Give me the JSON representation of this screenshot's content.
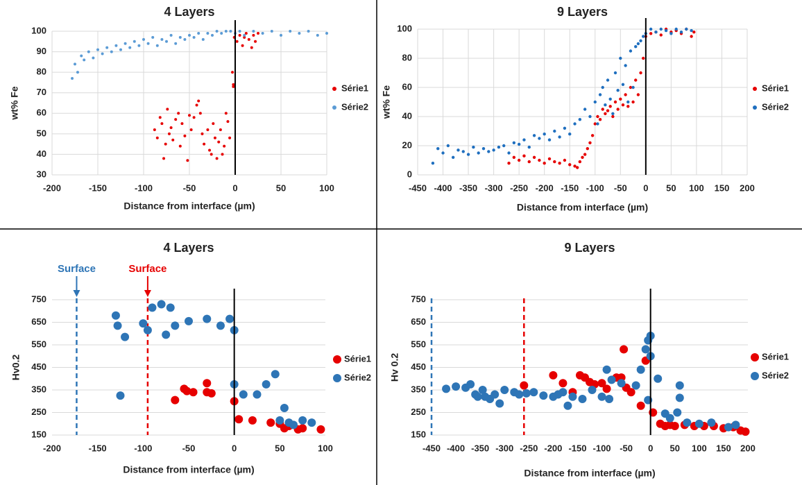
{
  "chart_data": [
    {
      "type": "scatter",
      "title": "4 Layers",
      "x_label": "Distance from interface (µm)",
      "y_label": "wt% Fe",
      "xlim": [
        -200,
        100
      ],
      "ylim": [
        30,
        100
      ],
      "xticks": [
        -200,
        -150,
        -100,
        -50,
        0,
        50,
        100
      ],
      "yticks": [
        30,
        40,
        50,
        60,
        70,
        80,
        90,
        100
      ],
      "grid": "both",
      "legend": "right",
      "series": [
        {
          "name": "Série1",
          "color": "#e60000",
          "x": [
            -88,
            -85,
            -82,
            -80,
            -78,
            -76,
            -74,
            -72,
            -70,
            -68,
            -65,
            -62,
            -60,
            -58,
            -55,
            -52,
            -50,
            -48,
            -45,
            -42,
            -40,
            -38,
            -36,
            -34,
            -30,
            -28,
            -26,
            -24,
            -22,
            -20,
            -18,
            -16,
            -14,
            -12,
            -10,
            -8,
            -6,
            -3,
            -2,
            -2,
            -1,
            2,
            5,
            8,
            10,
            12,
            15,
            18,
            20,
            22,
            25
          ],
          "values": [
            52,
            48,
            58,
            55,
            38,
            45,
            62,
            50,
            53,
            47,
            57,
            60,
            44,
            55,
            49,
            37,
            59,
            52,
            58,
            64,
            66,
            60,
            50,
            45,
            52,
            42,
            40,
            55,
            48,
            38,
            46,
            52,
            40,
            44,
            60,
            56,
            48,
            80,
            74,
            73,
            97,
            95,
            98,
            93,
            97,
            99,
            96,
            92,
            98,
            95,
            99
          ]
        },
        {
          "name": "Série2",
          "color": "#5b9bd5",
          "x": [
            -178,
            -175,
            -172,
            -168,
            -165,
            -160,
            -155,
            -150,
            -145,
            -140,
            -135,
            -130,
            -125,
            -120,
            -115,
            -110,
            -105,
            -100,
            -95,
            -90,
            -85,
            -80,
            -75,
            -70,
            -65,
            -60,
            -55,
            -50,
            -45,
            -40,
            -35,
            -30,
            -25,
            -20,
            -15,
            -10,
            -5,
            0,
            5,
            10,
            20,
            30,
            40,
            50,
            60,
            70,
            80,
            90,
            100
          ],
          "values": [
            77,
            84,
            80,
            88,
            86,
            90,
            87,
            91,
            89,
            92,
            90,
            93,
            91,
            94,
            92,
            95,
            93,
            96,
            94,
            97,
            93,
            96,
            95,
            98,
            94,
            97,
            96,
            98,
            97,
            99,
            96,
            99,
            98,
            100,
            99,
            100,
            100,
            99,
            100,
            98,
            100,
            99,
            100,
            98,
            100,
            99,
            100,
            98,
            99
          ]
        }
      ]
    },
    {
      "type": "scatter",
      "title": "9 Layers",
      "x_label": "Distance from interface (µm)",
      "y_label": "wt% Fe",
      "xlim": [
        -450,
        200
      ],
      "ylim": [
        0,
        100
      ],
      "xticks": [
        -450,
        -400,
        -350,
        -300,
        -250,
        -200,
        -150,
        -100,
        -50,
        0,
        50,
        100,
        150,
        200
      ],
      "yticks": [
        0,
        20,
        40,
        60,
        80,
        100
      ],
      "grid": "both",
      "legend": "right",
      "series": [
        {
          "name": "Série1",
          "color": "#e60000",
          "x": [
            -270,
            -260,
            -250,
            -240,
            -230,
            -220,
            -210,
            -200,
            -190,
            -180,
            -170,
            -160,
            -150,
            -140,
            -135,
            -130,
            -125,
            -120,
            -115,
            -110,
            -105,
            -100,
            -95,
            -90,
            -85,
            -80,
            -75,
            -70,
            -65,
            -60,
            -55,
            -50,
            -45,
            -40,
            -35,
            -30,
            -25,
            -20,
            -15,
            -10,
            -5,
            0,
            10,
            20,
            30,
            40,
            50,
            60,
            70,
            80,
            90,
            95
          ],
          "values": [
            8,
            12,
            10,
            13,
            9,
            12,
            10,
            8,
            11,
            9,
            8,
            10,
            7,
            6,
            5,
            9,
            12,
            14,
            18,
            22,
            27,
            35,
            40,
            38,
            45,
            42,
            44,
            47,
            40,
            50,
            45,
            52,
            48,
            55,
            47,
            60,
            50,
            65,
            55,
            70,
            80,
            95,
            97,
            98,
            96,
            100,
            98,
            99,
            97,
            100,
            95,
            98
          ]
        },
        {
          "name": "Série2",
          "color": "#1f6fbf",
          "x": [
            -420,
            -410,
            -400,
            -390,
            -380,
            -370,
            -360,
            -350,
            -340,
            -330,
            -320,
            -310,
            -300,
            -290,
            -280,
            -270,
            -260,
            -250,
            -240,
            -230,
            -220,
            -210,
            -200,
            -190,
            -180,
            -170,
            -160,
            -150,
            -140,
            -130,
            -120,
            -110,
            -100,
            -95,
            -90,
            -85,
            -80,
            -75,
            -70,
            -65,
            -60,
            -55,
            -50,
            -45,
            -40,
            -35,
            -30,
            -25,
            -20,
            -15,
            -10,
            -5,
            0,
            10,
            20,
            30,
            40,
            50,
            60,
            70,
            80,
            90
          ],
          "values": [
            8,
            18,
            15,
            20,
            12,
            17,
            16,
            14,
            19,
            15,
            18,
            16,
            17,
            19,
            20,
            15,
            22,
            21,
            24,
            19,
            27,
            25,
            28,
            24,
            30,
            26,
            32,
            28,
            35,
            38,
            45,
            40,
            50,
            35,
            55,
            60,
            48,
            65,
            52,
            42,
            70,
            58,
            80,
            62,
            75,
            50,
            85,
            60,
            88,
            90,
            92,
            95,
            97,
            100,
            98,
            100,
            99,
            97,
            100,
            98,
            100,
            99
          ]
        }
      ]
    },
    {
      "type": "scatter",
      "title": "4 Layers",
      "x_label": "Distance from interface (µm)",
      "y_label": "Hv0.2",
      "xlim": [
        -200,
        100
      ],
      "ylim": [
        150,
        750
      ],
      "xticks": [
        -200,
        -150,
        -100,
        -50,
        0,
        50,
        100
      ],
      "yticks": [
        150,
        250,
        350,
        450,
        550,
        650,
        750
      ],
      "grid": "y",
      "legend": "right",
      "annotations": [
        {
          "text": "Surface",
          "x": -173,
          "color": "#2e75b6"
        },
        {
          "text": "Surface",
          "x": -95,
          "color": "#e60000"
        }
      ],
      "series": [
        {
          "name": "Série1",
          "color": "#e60000",
          "x": [
            -65,
            -55,
            -52,
            -45,
            -30,
            -30,
            -25,
            0,
            5,
            20,
            40,
            50,
            55,
            60,
            70,
            75,
            95
          ],
          "values": [
            305,
            355,
            345,
            340,
            380,
            340,
            335,
            300,
            220,
            215,
            205,
            200,
            180,
            190,
            175,
            180,
            175
          ]
        },
        {
          "name": "Série2",
          "color": "#2e75b6",
          "x": [
            -130,
            -128,
            -120,
            -125,
            -100,
            -95,
            -90,
            -80,
            -75,
            -70,
            -65,
            -50,
            -30,
            -15,
            -5,
            0,
            0,
            10,
            25,
            35,
            45,
            50,
            55,
            60,
            65,
            75,
            85
          ],
          "values": [
            680,
            635,
            585,
            325,
            645,
            615,
            715,
            730,
            595,
            715,
            635,
            655,
            665,
            635,
            665,
            615,
            375,
            330,
            330,
            375,
            420,
            215,
            270,
            205,
            195,
            215,
            205
          ]
        }
      ]
    },
    {
      "type": "scatter",
      "title": "9 Layers",
      "x_label": "Distance from interface (µm)",
      "y_label": "Hv 0.2",
      "xlim": [
        -450,
        200
      ],
      "ylim": [
        150,
        750
      ],
      "xticks": [
        -450,
        -400,
        -350,
        -300,
        -250,
        -200,
        -150,
        -100,
        -50,
        0,
        50,
        100,
        150,
        200
      ],
      "yticks": [
        150,
        250,
        350,
        450,
        550,
        650,
        750
      ],
      "grid": "y",
      "legend": "right",
      "annotations": [
        {
          "x": -450,
          "color": "#2e75b6"
        },
        {
          "x": -260,
          "color": "#e60000"
        }
      ],
      "series": [
        {
          "name": "Série1",
          "color": "#e60000",
          "x": [
            -260,
            -200,
            -180,
            -160,
            -145,
            -135,
            -125,
            -115,
            -100,
            -90,
            -70,
            -60,
            -55,
            -50,
            -40,
            -20,
            -10,
            5,
            20,
            30,
            40,
            50,
            70,
            90,
            110,
            130,
            150,
            170,
            185,
            195
          ],
          "values": [
            370,
            415,
            380,
            340,
            415,
            405,
            385,
            375,
            380,
            355,
            405,
            405,
            530,
            360,
            340,
            280,
            480,
            250,
            200,
            190,
            195,
            190,
            195,
            190,
            190,
            190,
            180,
            185,
            170,
            165
          ]
        },
        {
          "name": "Série2",
          "color": "#2e75b6",
          "x": [
            -420,
            -400,
            -380,
            -370,
            -360,
            -355,
            -345,
            -340,
            -330,
            -320,
            -310,
            -300,
            -280,
            -270,
            -255,
            -240,
            -220,
            -200,
            -190,
            -180,
            -170,
            -160,
            -140,
            -120,
            -100,
            -90,
            -85,
            -80,
            -60,
            -30,
            -20,
            -10,
            -5,
            0,
            0,
            -5,
            15,
            30,
            40,
            55,
            60,
            60,
            75,
            100,
            125,
            160,
            175
          ],
          "values": [
            355,
            365,
            360,
            375,
            330,
            320,
            350,
            320,
            310,
            330,
            290,
            350,
            340,
            330,
            335,
            340,
            325,
            320,
            330,
            340,
            280,
            320,
            310,
            350,
            320,
            440,
            310,
            395,
            380,
            370,
            440,
            530,
            570,
            590,
            500,
            305,
            400,
            245,
            225,
            250,
            370,
            315,
            205,
            200,
            205,
            185,
            195
          ]
        }
      ]
    }
  ]
}
